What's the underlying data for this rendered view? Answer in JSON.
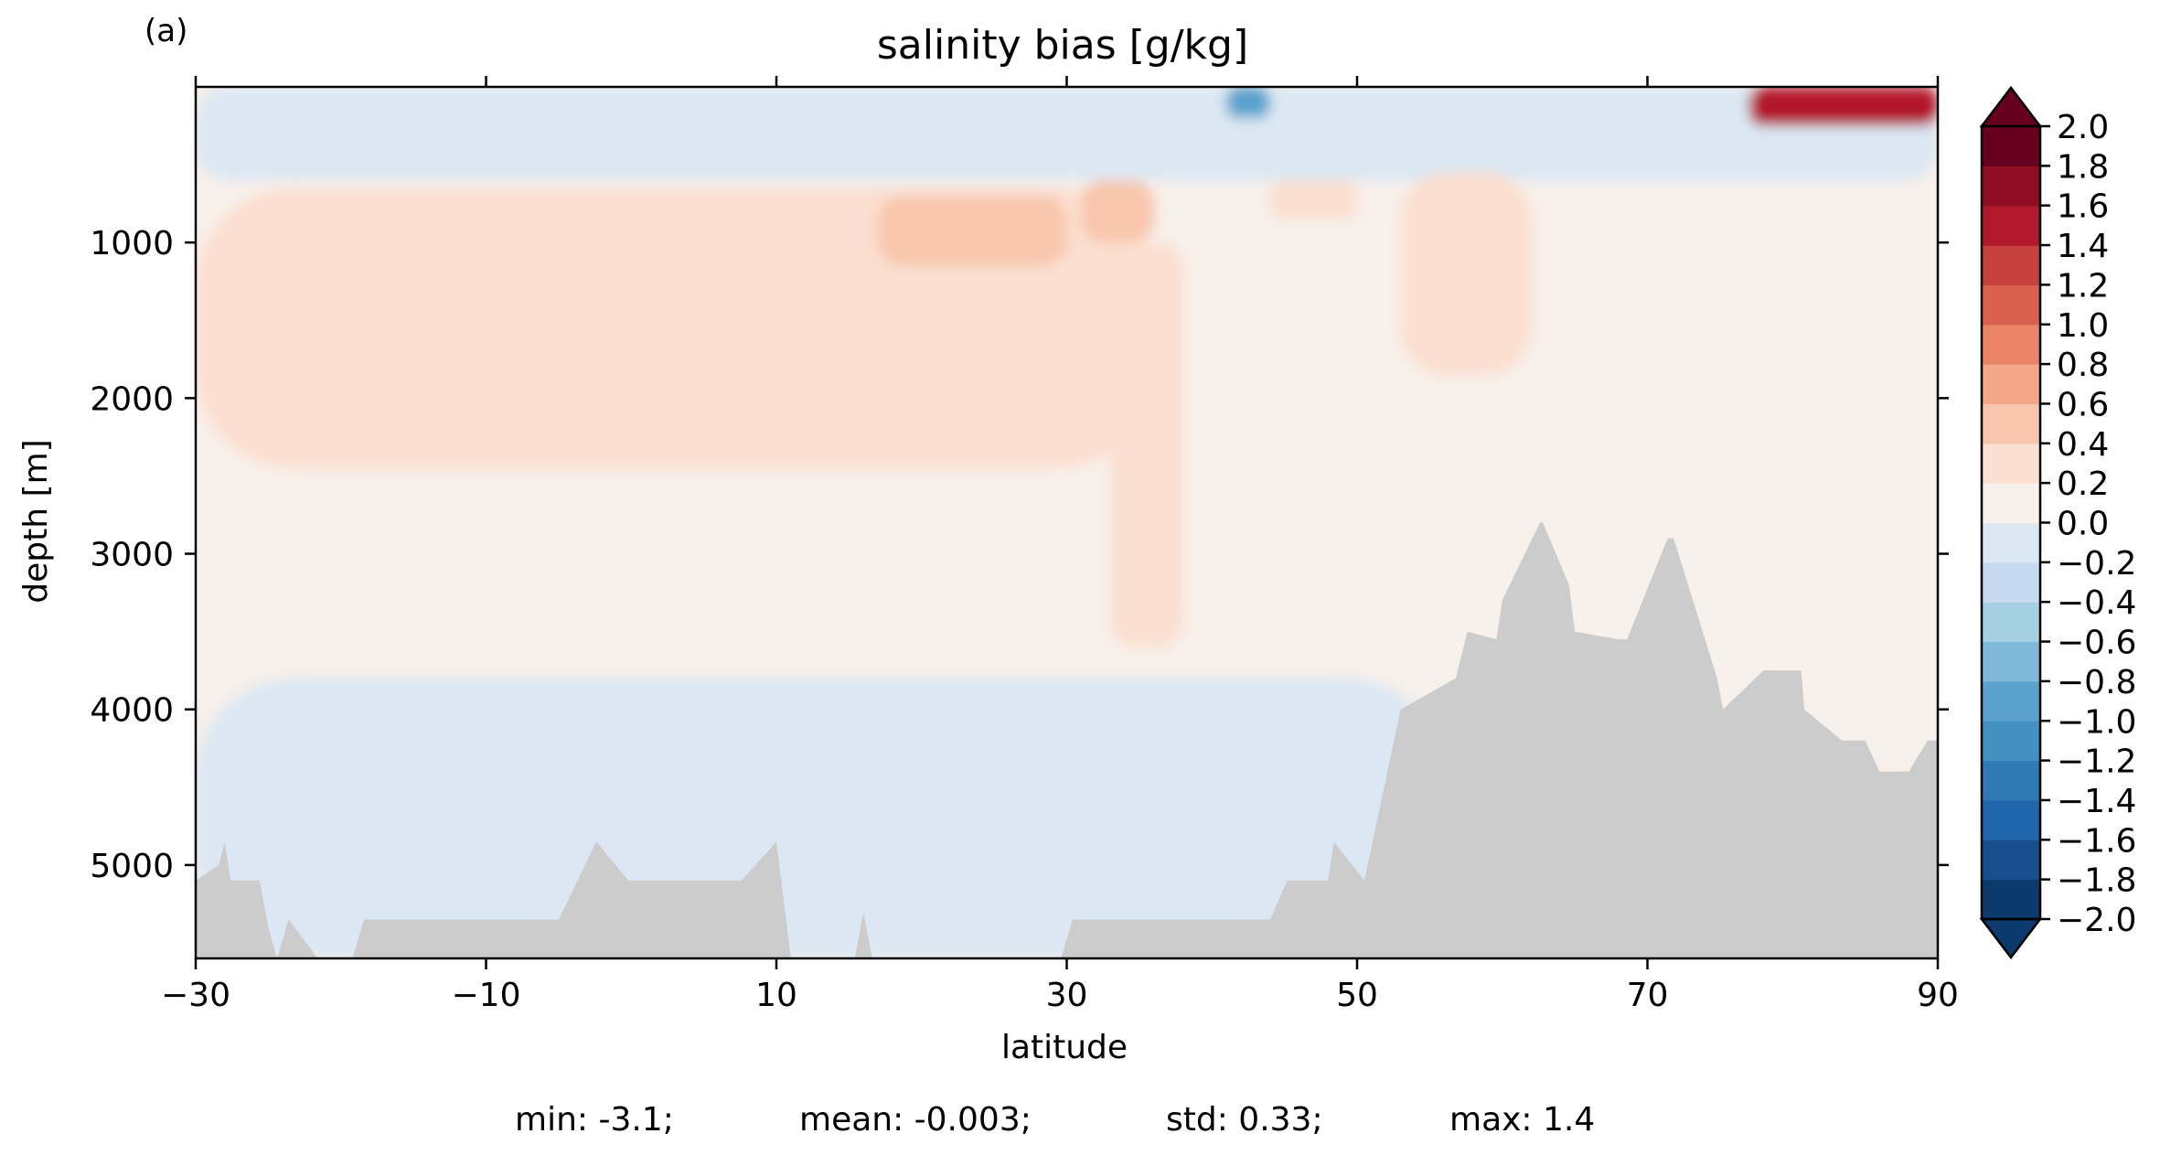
{
  "chart_data": {
    "type": "heatmap",
    "panel_label": "(a)",
    "title": "salinity bias [g/kg]",
    "xlabel": "latitude",
    "ylabel": "depth [m]",
    "xlim": [
      -30,
      90
    ],
    "ylim": [
      5600,
      0
    ],
    "y_inverted": true,
    "x_ticks": [
      -30,
      -10,
      10,
      30,
      50,
      70,
      90
    ],
    "x_tick_labels": [
      "−30",
      "−10",
      "10",
      "30",
      "50",
      "70",
      "90"
    ],
    "y_ticks": [
      1000,
      2000,
      3000,
      4000,
      5000
    ],
    "y_tick_labels": [
      "1000",
      "2000",
      "3000",
      "4000",
      "5000"
    ],
    "colormap": "RdBu_r",
    "colorbar": {
      "levels": [
        -2.0,
        -1.8,
        -1.6,
        -1.4,
        -1.2,
        -1.0,
        -0.8,
        -0.6,
        -0.4,
        -0.2,
        0.0,
        0.2,
        0.4,
        0.6,
        0.8,
        1.0,
        1.2,
        1.4,
        1.6,
        1.8,
        2.0
      ],
      "tick_labels": [
        "−2.0",
        "−1.8",
        "−1.6",
        "−1.4",
        "−1.2",
        "−1.0",
        "−0.8",
        "−0.6",
        "−0.4",
        "−0.2",
        "0.0",
        "0.2",
        "0.4",
        "0.6",
        "0.8",
        "1.0",
        "1.2",
        "1.4",
        "1.6",
        "1.8",
        "2.0"
      ],
      "colors": [
        "#0d3a6c",
        "#174f8c",
        "#2166ac",
        "#2f79b5",
        "#4291c2",
        "#5aa2cd",
        "#7fb8d8",
        "#a6cfe4",
        "#c6dbef",
        "#dbe8f3",
        "#eef2f6",
        "#f8f0eb",
        "#fbdfd0",
        "#f8c6ac",
        "#f4a788",
        "#e98466",
        "#d8604c",
        "#c6413d",
        "#b2182b",
        "#8e0d24",
        "#67001f"
      ],
      "extend": "both"
    },
    "fields": {
      "background_value": 0.1,
      "regions": [
        {
          "name": "upper-layer-fresh",
          "value": -0.1,
          "x": [
            -30,
            90
          ],
          "depth": [
            0,
            600
          ]
        },
        {
          "name": "intermediate-salty-tongue",
          "value": 0.3,
          "x": [
            -30,
            36
          ],
          "depth": [
            650,
            2450
          ]
        },
        {
          "name": "salty-core-20N",
          "value": 0.5,
          "x": [
            17,
            30
          ],
          "depth": [
            700,
            1150
          ]
        },
        {
          "name": "salty-core-34N",
          "value": 0.5,
          "x": [
            31,
            36
          ],
          "depth": [
            600,
            1000
          ]
        },
        {
          "name": "mediterranean-outflow-plume",
          "value": 0.3,
          "x": [
            33,
            38
          ],
          "depth": [
            1000,
            3600
          ]
        },
        {
          "name": "salty-tongue-50N",
          "value": 0.3,
          "x": [
            53,
            62
          ],
          "depth": [
            550,
            1850
          ]
        },
        {
          "name": "salty-patch-48N",
          "value": 0.3,
          "x": [
            44,
            50
          ],
          "depth": [
            600,
            850
          ]
        },
        {
          "name": "deep-fresh-water",
          "value": -0.1,
          "x": [
            -30,
            56
          ],
          "depth": [
            3800,
            5600
          ]
        },
        {
          "name": "surface-fresh-40N",
          "value": -1.0,
          "x": [
            41,
            44
          ],
          "depth": [
            0,
            200
          ]
        },
        {
          "name": "surface-salty-arctic",
          "value": 1.4,
          "x": [
            77,
            90
          ],
          "depth": [
            0,
            250
          ]
        }
      ]
    },
    "bathymetry": {
      "fill_color": "#cccccc",
      "latitude": [
        -30,
        -28.4,
        -28,
        -27.6,
        -25.6,
        -25,
        -24.4,
        -23.6,
        -21.6,
        -19.2,
        -18.4,
        -5,
        -2.4,
        -0.2,
        7.6,
        10,
        11,
        15.4,
        16,
        16.6,
        29.6,
        30.4,
        36.4,
        44,
        45.2,
        48,
        48.4,
        50.5,
        53,
        56.8,
        57.6,
        59.6,
        60,
        62.6,
        62.8,
        64.6,
        65,
        68,
        68.6,
        71.4,
        71.8,
        74.8,
        75.2,
        78,
        80.6,
        80.8,
        83.4,
        85,
        86,
        88,
        89.3,
        90
      ],
      "bottom_depth": [
        5100,
        5000,
        4850,
        5100,
        5100,
        5400,
        5600,
        5350,
        5600,
        5600,
        5350,
        5350,
        4850,
        5100,
        5100,
        4850,
        5600,
        5600,
        5300,
        5600,
        5600,
        5350,
        5350,
        5350,
        5100,
        5100,
        4850,
        5100,
        4000,
        3800,
        3500,
        3550,
        3300,
        2800,
        2800,
        3200,
        3500,
        3550,
        3550,
        2900,
        2900,
        3800,
        4000,
        3750,
        3750,
        4000,
        4200,
        4200,
        4400,
        4400,
        4200,
        4200
      ]
    },
    "stats_text": [
      "min: -3.1;",
      "mean: -0.003;",
      "std: 0.33;",
      "max: 1.4"
    ]
  }
}
